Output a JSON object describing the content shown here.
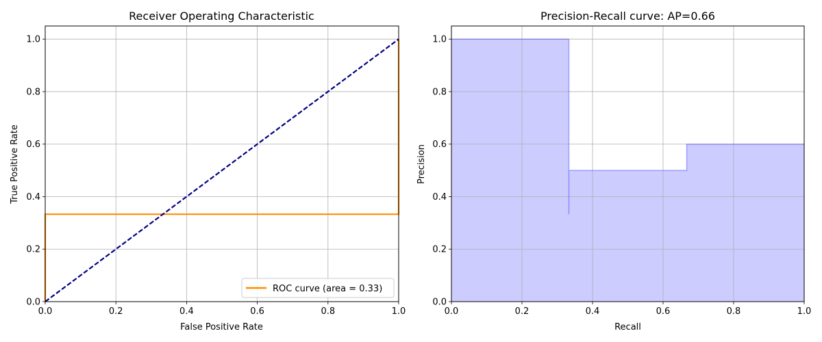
{
  "chart_data": [
    {
      "type": "line",
      "title": "Receiver Operating Characteristic",
      "xlabel": "False Positive Rate",
      "ylabel": "True Positive Rate",
      "xlim": [
        0.0,
        1.0
      ],
      "ylim": [
        0.0,
        1.05
      ],
      "xticks": [
        "0.0",
        "0.2",
        "0.4",
        "0.6",
        "0.8",
        "1.0"
      ],
      "yticks": [
        "0.0",
        "0.2",
        "0.4",
        "0.6",
        "0.8",
        "1.0"
      ],
      "grid": true,
      "legend_location": "lower right",
      "series": [
        {
          "name": "ROC curve (area = 0.33)",
          "color": "#ff8c00",
          "style": "solid",
          "x": [
            0.0,
            0.0,
            0.0,
            1.0,
            1.0
          ],
          "y": [
            0.0,
            0.333,
            0.333,
            0.333,
            1.0
          ]
        },
        {
          "color": "#000080",
          "style": "dashed",
          "x": [
            0.0,
            1.0
          ],
          "y": [
            0.0,
            1.0
          ]
        }
      ]
    },
    {
      "type": "area",
      "title": "Precision-Recall curve: AP=0.66",
      "xlabel": "Recall",
      "ylabel": "Precision",
      "xlim": [
        0.0,
        1.0
      ],
      "ylim": [
        0.0,
        1.05
      ],
      "xticks": [
        "0.0",
        "0.2",
        "0.4",
        "0.6",
        "0.8",
        "1.0"
      ],
      "yticks": [
        "0.0",
        "0.2",
        "0.4",
        "0.6",
        "0.8",
        "1.0"
      ],
      "grid": true,
      "series": [
        {
          "color": "#0000ff",
          "fill_color": "#ccccff",
          "style": "step-post",
          "x": [
            0.0,
            0.333,
            0.333,
            0.667,
            1.0
          ],
          "y": [
            1.0,
            0.333,
            0.5,
            0.6,
            0.6
          ]
        }
      ]
    }
  ]
}
